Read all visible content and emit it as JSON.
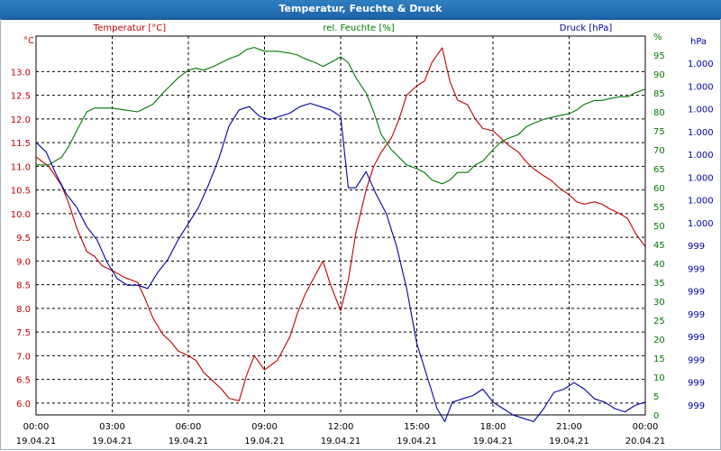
{
  "window": {
    "title": "Temperatur, Feuchte & Druck"
  },
  "colors": {
    "temperature": "#c00000",
    "humidity": "#007a00",
    "pressure": "#0000a8",
    "grid": "#000000",
    "axis_text": "#000000"
  },
  "chart_data": {
    "type": "line",
    "title": "Temperatur, Feuchte & Druck",
    "grid": true,
    "x_ticks": [
      {
        "time": "00:00",
        "date": "19.04.21"
      },
      {
        "time": "03:00",
        "date": "19.04.21"
      },
      {
        "time": "06:00",
        "date": "19.04.21"
      },
      {
        "time": "09:00",
        "date": "19.04.21"
      },
      {
        "time": "12:00",
        "date": "19.04.21"
      },
      {
        "time": "15:00",
        "date": "19.04.21"
      },
      {
        "time": "18:00",
        "date": "19.04.21"
      },
      {
        "time": "21:00",
        "date": "19.04.21"
      },
      {
        "time": "00:00",
        "date": "20.04.21"
      }
    ],
    "x_range_hours": [
      0,
      24
    ],
    "axes": {
      "temperature": {
        "unit": "°C",
        "label": "Temperatur [°C]",
        "ylim": [
          5.75,
          13.75
        ],
        "ticks": [
          "6.0",
          "6.5",
          "7.0",
          "7.5",
          "8.0",
          "8.5",
          "9.0",
          "9.5",
          "10.0",
          "10.5",
          "11.0",
          "11.5",
          "12.0",
          "12.5",
          "13.0"
        ]
      },
      "humidity": {
        "unit": "%",
        "label": "rel. Feuchte [%]",
        "ylim": [
          0,
          100
        ],
        "ticks": [
          "0",
          "5",
          "10",
          "15",
          "20",
          "25",
          "30",
          "35",
          "40",
          "45",
          "50",
          "55",
          "60",
          "65",
          "70",
          "75",
          "80",
          "85",
          "90",
          "95",
          "%"
        ]
      },
      "pressure": {
        "unit": "hPa",
        "label": "Druck [hPa]",
        "ticks": [
          "999",
          "999",
          "999",
          "999",
          "999",
          "999",
          "999",
          "999",
          "1.000",
          "1.000",
          "1.000",
          "1.000",
          "1.000",
          "1.000",
          "1.000",
          "1.000"
        ],
        "ylim": [
          0,
          1
        ]
      }
    },
    "series": [
      {
        "name": "Temperatur [°C]",
        "axis": "temperature",
        "x": [
          0,
          0.5,
          1,
          1.3,
          1.6,
          2,
          2.3,
          2.6,
          3,
          3.5,
          4,
          4.3,
          4.6,
          5,
          5.3,
          5.6,
          6,
          6.3,
          6.6,
          7,
          7.3,
          7.6,
          8,
          8.3,
          8.6,
          9,
          9.5,
          10,
          10.3,
          10.6,
          11,
          11.3,
          11.6,
          12,
          12.3,
          12.6,
          13,
          13.3,
          13.6,
          14,
          14.3,
          14.6,
          15,
          15.3,
          15.6,
          16,
          16.3,
          16.6,
          17,
          17.3,
          17.6,
          18,
          18.3,
          18.6,
          19,
          19.3,
          19.6,
          20,
          20.3,
          20.6,
          21,
          21.3,
          21.6,
          22,
          22.3,
          22.6,
          23,
          23.3,
          23.6,
          24
        ],
        "y": [
          11.2,
          11.0,
          10.6,
          10.2,
          9.7,
          9.2,
          9.1,
          8.9,
          8.8,
          8.65,
          8.55,
          8.2,
          7.8,
          7.45,
          7.3,
          7.1,
          7.0,
          6.9,
          6.65,
          6.45,
          6.3,
          6.1,
          6.05,
          6.6,
          7.0,
          6.7,
          6.9,
          7.4,
          7.9,
          8.3,
          8.7,
          9.0,
          8.5,
          7.95,
          8.6,
          9.6,
          10.5,
          11.0,
          11.3,
          11.6,
          12.0,
          12.5,
          12.7,
          12.8,
          13.2,
          13.5,
          12.8,
          12.4,
          12.3,
          12.0,
          11.8,
          11.75,
          11.6,
          11.45,
          11.3,
          11.1,
          10.95,
          10.8,
          10.7,
          10.55,
          10.4,
          10.25,
          10.2,
          10.25,
          10.2,
          10.1,
          10.0,
          9.9,
          9.6,
          9.3
        ]
      },
      {
        "name": "rel. Feuchte [%]",
        "axis": "humidity",
        "x": [
          0,
          0.5,
          1,
          1.3,
          1.6,
          2,
          2.3,
          2.6,
          3,
          3.5,
          4,
          4.3,
          4.6,
          5,
          5.3,
          5.6,
          6,
          6.3,
          6.6,
          7,
          7.3,
          7.6,
          8,
          8.3,
          8.6,
          9,
          9.5,
          10,
          10.3,
          10.6,
          11,
          11.3,
          11.6,
          12,
          12.3,
          12.6,
          13,
          13.3,
          13.6,
          14,
          14.3,
          14.6,
          15,
          15.3,
          15.6,
          16,
          16.3,
          16.6,
          17,
          17.3,
          17.6,
          18,
          18.3,
          18.6,
          19,
          19.3,
          19.6,
          20,
          20.3,
          20.6,
          21,
          21.3,
          21.6,
          22,
          22.3,
          22.6,
          23,
          23.3,
          23.6,
          24
        ],
        "y": [
          66,
          66,
          68,
          71,
          75,
          80,
          81,
          81,
          81,
          80.5,
          80,
          81,
          82,
          85,
          87,
          89,
          91,
          91.5,
          91,
          92,
          93,
          94,
          95,
          96.5,
          97,
          96,
          96,
          95.5,
          95,
          94,
          93,
          92,
          93,
          94.5,
          93,
          89,
          85,
          80,
          74,
          70,
          68,
          66,
          65,
          64,
          62,
          61,
          62,
          64,
          64,
          66,
          67,
          70,
          72,
          73,
          74,
          76,
          77,
          78,
          78.5,
          79,
          79.5,
          80.5,
          82,
          83,
          83,
          83.5,
          84,
          84,
          85,
          86
        ]
      },
      {
        "name": "Druck [hPa]",
        "axis": "pressure",
        "x": [
          0,
          0.4,
          0.8,
          1.2,
          1.6,
          2,
          2.4,
          2.8,
          3.2,
          3.6,
          4,
          4.4,
          4.8,
          5.2,
          5.6,
          6,
          6.4,
          6.8,
          7.2,
          7.6,
          8,
          8.4,
          8.8,
          9.2,
          9.6,
          10,
          10.4,
          10.8,
          11.2,
          11.6,
          12,
          12.3,
          12.6,
          13,
          13.4,
          13.8,
          14.2,
          14.6,
          15,
          15.4,
          15.8,
          16.1,
          16.4,
          16.8,
          17.2,
          17.6,
          18,
          18.4,
          18.8,
          19.2,
          19.6,
          20,
          20.4,
          20.8,
          21.2,
          21.6,
          22,
          22.4,
          22.8,
          23.2,
          23.6,
          24
        ],
        "y": [
          0.82,
          0.79,
          0.72,
          0.66,
          0.62,
          0.56,
          0.52,
          0.45,
          0.4,
          0.38,
          0.38,
          0.37,
          0.42,
          0.46,
          0.52,
          0.57,
          0.62,
          0.69,
          0.77,
          0.87,
          0.92,
          0.93,
          0.9,
          0.89,
          0.9,
          0.91,
          0.93,
          0.94,
          0.93,
          0.92,
          0.9,
          0.68,
          0.68,
          0.73,
          0.66,
          0.6,
          0.5,
          0.37,
          0.2,
          0.1,
          0.0,
          -0.04,
          0.02,
          0.03,
          0.04,
          0.06,
          0.02,
          0.0,
          -0.02,
          -0.03,
          -0.04,
          0.0,
          0.05,
          0.06,
          0.08,
          0.06,
          0.03,
          0.02,
          0.0,
          -0.01,
          0.01,
          0.02
        ]
      }
    ]
  }
}
